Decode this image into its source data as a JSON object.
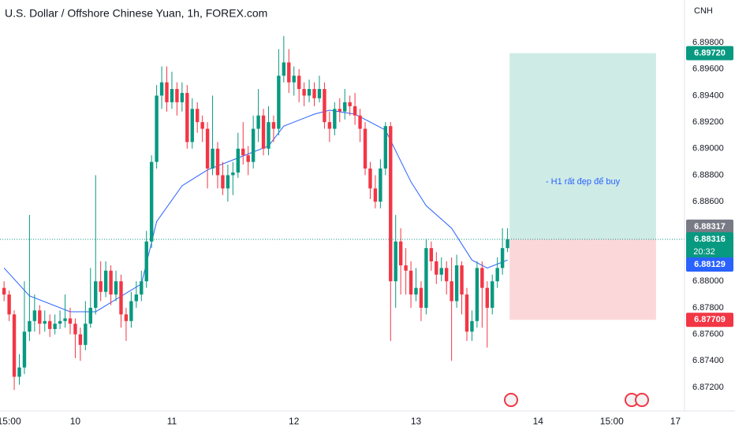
{
  "chart_data": {
    "type": "candlestick",
    "title": "U.S. Dollar / Offshore Chinese Yuan, 1h, FOREX.com",
    "currency": "CNH",
    "xlim": [
      -0.8,
      133.8
    ],
    "ylim": [
      6.87022,
      6.90121
    ],
    "xticks": [
      {
        "value": 1,
        "label": "15:00"
      },
      {
        "value": 14,
        "label": "10"
      },
      {
        "value": 33,
        "label": "11"
      },
      {
        "value": 57,
        "label": "12"
      },
      {
        "value": 81,
        "label": "13"
      },
      {
        "value": 105,
        "label": "14"
      },
      {
        "value": 119.5,
        "label": "15:00"
      },
      {
        "value": 132,
        "label": "17"
      }
    ],
    "yticks": [
      {
        "value": 6.872,
        "label": "6.87200"
      },
      {
        "value": 6.874,
        "label": "6.87400"
      },
      {
        "value": 6.876,
        "label": "6.87600"
      },
      {
        "value": 6.878,
        "label": "6.87800"
      },
      {
        "value": 6.88,
        "label": "6.88000"
      },
      {
        "value": 6.882,
        "label": "6.88200"
      },
      {
        "value": 6.884,
        "label": "6.88400"
      },
      {
        "value": 6.886,
        "label": "6.88600"
      },
      {
        "value": 6.888,
        "label": "6.88800"
      },
      {
        "value": 6.89,
        "label": "6.89000"
      },
      {
        "value": 6.892,
        "label": "6.89200"
      },
      {
        "value": 6.894,
        "label": "6.89400"
      },
      {
        "value": 6.896,
        "label": "6.89600"
      },
      {
        "value": 6.898,
        "label": "6.89800"
      }
    ],
    "grid": false,
    "up_color": "#089981",
    "down_color": "#f23645",
    "ohlc": {
      "open": [
        6.8795,
        6.879,
        6.8775,
        6.8728,
        6.8735,
        6.8762,
        6.877,
        6.8778,
        6.8768,
        6.877,
        6.8764,
        6.8768,
        6.877,
        6.8772,
        6.8768,
        6.876,
        6.8752,
        6.8768,
        6.878,
        6.88,
        6.8792,
        6.8808,
        6.879,
        6.88,
        6.8775,
        6.877,
        6.8785,
        6.879,
        6.88,
        6.883,
        6.889,
        6.894,
        6.895,
        6.8935,
        6.8945,
        6.8935,
        6.8942,
        6.8905,
        6.893,
        6.892,
        6.8915,
        6.8885,
        6.89,
        6.888,
        6.887,
        6.888,
        6.8882,
        6.89,
        6.8895,
        6.889,
        6.8915,
        6.8925,
        6.89,
        6.892,
        6.8915,
        6.8955,
        6.8965,
        6.895,
        6.8955,
        6.8945,
        6.894,
        6.8945,
        6.8938,
        6.8945,
        6.892,
        6.8915,
        6.893,
        6.8928,
        6.8935,
        6.8932,
        6.8925,
        6.8915,
        6.8885,
        6.887,
        6.886,
        6.8885,
        6.8917,
        6.88,
        6.883,
        6.8812,
        6.8808,
        6.879,
        6.8795,
        6.878,
        6.8825,
        6.8815,
        6.8805,
        6.881,
        6.88,
        6.8785,
        6.8812,
        6.879,
        6.8762,
        6.877,
        6.881,
        6.8795,
        6.878,
        6.88,
        6.881,
        6.8825
      ],
      "high": [
        6.88,
        6.8793,
        6.8778,
        6.8745,
        6.88,
        6.885,
        6.879,
        6.8782,
        6.8778,
        6.8775,
        6.8775,
        6.8778,
        6.879,
        6.878,
        6.8772,
        6.8765,
        6.8785,
        6.881,
        6.888,
        6.8815,
        6.8815,
        6.8812,
        6.8808,
        6.8805,
        6.878,
        6.8792,
        6.88,
        6.8808,
        6.8838,
        6.8895,
        6.8948,
        6.8962,
        6.8962,
        6.8958,
        6.895,
        6.895,
        6.8948,
        6.8938,
        6.8935,
        6.8925,
        6.892,
        6.894,
        6.8905,
        6.889,
        6.8888,
        6.889,
        6.8912,
        6.892,
        6.8902,
        6.8925,
        6.8945,
        6.893,
        6.8932,
        6.8925,
        6.8975,
        6.8985,
        6.8975,
        6.8962,
        6.896,
        6.895,
        6.8952,
        6.895,
        6.8955,
        6.895,
        6.8928,
        6.8935,
        6.8938,
        6.8945,
        6.894,
        6.8942,
        6.893,
        6.892,
        6.889,
        6.888,
        6.8892,
        6.892,
        6.892,
        6.885,
        6.884,
        6.8825,
        6.8815,
        6.881,
        6.88,
        6.8832,
        6.883,
        6.8822,
        6.8818,
        6.8815,
        6.8818,
        6.882,
        6.8815,
        6.8795,
        6.8778,
        6.8815,
        6.8815,
        6.88,
        6.8805,
        6.8818,
        6.884,
        6.884
      ],
      "low": [
        6.8785,
        6.877,
        6.8718,
        6.8722,
        6.873,
        6.8755,
        6.8762,
        6.876,
        6.8762,
        6.8758,
        6.876,
        6.8764,
        6.8765,
        6.876,
        6.8742,
        6.874,
        6.8748,
        6.8765,
        6.8775,
        6.8785,
        6.8788,
        6.8782,
        6.8785,
        6.8765,
        6.8755,
        6.8765,
        6.878,
        6.8785,
        6.8795,
        6.8825,
        6.8885,
        6.893,
        6.8928,
        6.893,
        6.8925,
        6.8928,
        6.89,
        6.89,
        6.8912,
        6.8905,
        6.887,
        6.888,
        6.887,
        6.8865,
        6.886,
        6.8865,
        6.8878,
        6.8888,
        6.888,
        6.8885,
        6.8905,
        6.8895,
        6.8895,
        6.8905,
        6.891,
        6.895,
        6.8942,
        6.894,
        6.8935,
        6.8932,
        6.8935,
        6.8932,
        6.8935,
        6.8915,
        6.8905,
        6.891,
        6.892,
        6.8922,
        6.8925,
        6.8918,
        6.8905,
        6.888,
        6.8862,
        6.8855,
        6.8855,
        6.888,
        6.8755,
        6.878,
        6.879,
        6.879,
        6.878,
        6.8785,
        6.877,
        6.8775,
        6.8808,
        6.8798,
        6.88,
        6.879,
        6.874,
        6.878,
        6.8775,
        6.8755,
        6.8755,
        6.8765,
        6.8765,
        6.875,
        6.8775,
        6.8795,
        6.8805,
        6.8822
      ],
      "close": [
        6.879,
        6.8775,
        6.8728,
        6.8735,
        6.8762,
        6.877,
        6.8778,
        6.8768,
        6.877,
        6.8764,
        6.8768,
        6.877,
        6.8772,
        6.8768,
        6.876,
        6.8752,
        6.8768,
        6.878,
        6.88,
        6.8792,
        6.8808,
        6.879,
        6.88,
        6.8775,
        6.877,
        6.8785,
        6.879,
        6.88,
        6.883,
        6.889,
        6.894,
        6.895,
        6.8935,
        6.8945,
        6.8935,
        6.8942,
        6.8905,
        6.893,
        6.892,
        6.8915,
        6.8885,
        6.89,
        6.888,
        6.887,
        6.888,
        6.8882,
        6.89,
        6.8895,
        6.889,
        6.8915,
        6.8925,
        6.89,
        6.892,
        6.8915,
        6.8955,
        6.8965,
        6.895,
        6.8955,
        6.8945,
        6.894,
        6.8945,
        6.8938,
        6.8945,
        6.892,
        6.8915,
        6.893,
        6.8928,
        6.8935,
        6.8932,
        6.8925,
        6.8915,
        6.8885,
        6.887,
        6.886,
        6.8885,
        6.8917,
        6.88,
        6.883,
        6.8812,
        6.8808,
        6.879,
        6.8795,
        6.878,
        6.8825,
        6.8815,
        6.8805,
        6.881,
        6.88,
        6.8785,
        6.8812,
        6.879,
        6.8762,
        6.877,
        6.881,
        6.8795,
        6.878,
        6.88,
        6.881,
        6.8825,
        6.88316
      ]
    },
    "ma": {
      "color": "#2962ff",
      "x": [
        0,
        5,
        13,
        18,
        27,
        30,
        35,
        40,
        46,
        52,
        55,
        61,
        64,
        69,
        75,
        80,
        83,
        88,
        92,
        95,
        99
      ],
      "values": [
        6.881,
        6.8789,
        6.8777,
        6.8777,
        6.8798,
        6.8845,
        6.8872,
        6.8884,
        6.8893,
        6.8902,
        6.8917,
        6.8926,
        6.8929,
        6.8926,
        6.8914,
        6.8875,
        6.8857,
        6.884,
        6.8816,
        6.881,
        6.8816
      ]
    },
    "position": {
      "xrange": [
        99.4,
        128.2
      ],
      "target": {
        "value": 6.8972,
        "label": "6.89720"
      },
      "entry": {
        "value": 6.88317,
        "label": "6.88317"
      },
      "stop": {
        "value": 6.87709,
        "label": "6.87709"
      },
      "note": "- H1 rất đẹp để buy"
    },
    "last_price": {
      "value": 6.88316,
      "label": "6.88316"
    },
    "countdown": "20:32",
    "ma_tag": {
      "value": 6.88129,
      "label": "6.88129"
    }
  }
}
